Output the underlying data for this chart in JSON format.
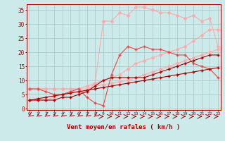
{
  "x": [
    0,
    1,
    2,
    3,
    4,
    5,
    6,
    7,
    8,
    9,
    10,
    11,
    12,
    13,
    14,
    15,
    16,
    17,
    18,
    19,
    20,
    21,
    22,
    23
  ],
  "line_dark_straight": [
    3,
    3.5,
    4,
    4.5,
    5,
    5.5,
    6,
    6.5,
    7,
    7.5,
    8,
    8.5,
    9,
    9.5,
    10,
    10.5,
    11,
    11.5,
    12,
    12.5,
    13,
    13.5,
    14,
    14.5
  ],
  "line_dark_wiggly": [
    3,
    3,
    3,
    3,
    4,
    4,
    5,
    6,
    8,
    10,
    11,
    11,
    11,
    11,
    11,
    12,
    13,
    14,
    15,
    16,
    17,
    18,
    19,
    19
  ],
  "line_med_wiggly": [
    7,
    7,
    6,
    5,
    5,
    6,
    7,
    4,
    2,
    1,
    12,
    19,
    22,
    21,
    22,
    21,
    21,
    20,
    19,
    19,
    16,
    15,
    14,
    11
  ],
  "line_light1": [
    7,
    7,
    7,
    7,
    7,
    7,
    7,
    7,
    8,
    8.5,
    9,
    9.5,
    10,
    11,
    12,
    13,
    14,
    15,
    16,
    17,
    18,
    19,
    20,
    21
  ],
  "line_light2": [
    7,
    7,
    7,
    7,
    7,
    7,
    7,
    8,
    9,
    10,
    11,
    12,
    14,
    16,
    17,
    18,
    19,
    20,
    21,
    22,
    24,
    26,
    28,
    28
  ],
  "line_light_top": [
    3,
    3,
    3,
    4,
    5,
    6,
    6,
    6,
    9,
    31,
    31,
    34,
    33,
    36,
    36,
    35,
    34,
    34,
    33,
    32,
    33,
    31,
    32,
    22
  ],
  "bg_color": "#cceaea",
  "grid_color": "#aacccc",
  "color_dark": "#aa0000",
  "color_med": "#ee4444",
  "color_light": "#ffaaaa",
  "xlabel": "Vent moyen/en rafales ( km/h )",
  "yticks": [
    0,
    5,
    10,
    15,
    20,
    25,
    30,
    35
  ],
  "xticks": [
    0,
    1,
    2,
    3,
    4,
    5,
    6,
    7,
    8,
    9,
    10,
    11,
    12,
    13,
    14,
    15,
    16,
    17,
    18,
    19,
    20,
    21,
    22,
    23
  ],
  "xlim": [
    -0.3,
    23.3
  ],
  "ylim": [
    -0.5,
    37
  ]
}
